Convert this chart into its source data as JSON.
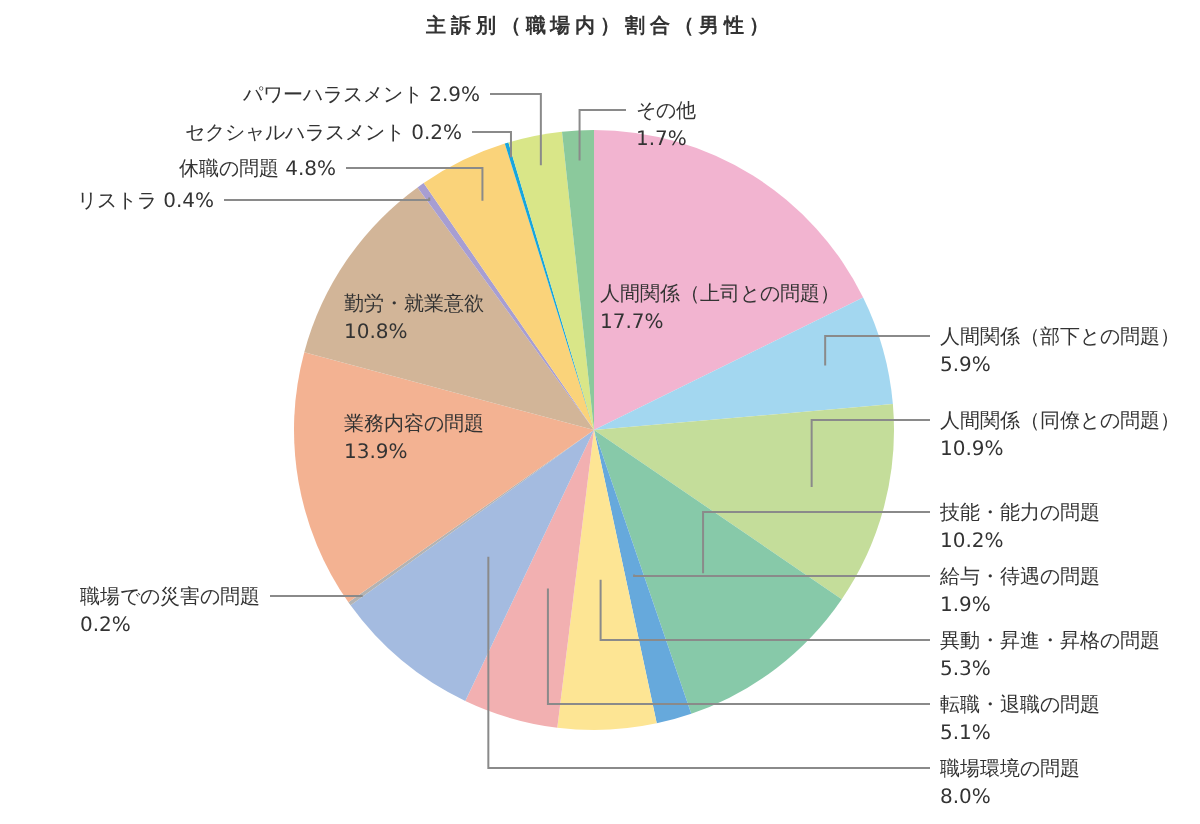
{
  "chart_data": {
    "type": "pie",
    "title": "主訴別（職場内）割合（男性）",
    "categories": [
      "人間関係（上司との問題）",
      "人間関係（部下との問題）",
      "人間関係（同僚との問題）",
      "技能・能力の問題",
      "給与・待遇の問題",
      "異動・昇進・昇格の問題",
      "転職・退職の問題",
      "職場環境の問題",
      "職場での災害の問題",
      "業務内容の問題",
      "勤労・就業意欲",
      "リストラ",
      "休職の問題",
      "セクシャルハラスメント",
      "パワーハラスメント",
      "その他"
    ],
    "values": [
      17.7,
      5.9,
      10.9,
      10.2,
      1.9,
      5.3,
      5.1,
      8.0,
      0.2,
      13.9,
      10.8,
      0.4,
      4.8,
      0.2,
      2.9,
      1.7
    ],
    "value_labels": [
      "17.7%",
      "5.9%",
      "10.9%",
      "10.2%",
      "1.9%",
      "5.3%",
      "5.1%",
      "8.0%",
      "0.2%",
      "13.9%",
      "10.8%",
      "0.4%",
      "4.8%",
      "0.2%",
      "2.9%",
      "1.7%"
    ],
    "colors": [
      "#f2b4d0",
      "#a3d7f0",
      "#c4dd9a",
      "#87c9a9",
      "#66a9dc",
      "#fde594",
      "#f2b0b1",
      "#a4bbe0",
      "#b3b3b3",
      "#f3b292",
      "#d2b598",
      "#a79ed2",
      "#fad37a",
      "#17a6dd",
      "#d9e688",
      "#8bc99c"
    ]
  }
}
